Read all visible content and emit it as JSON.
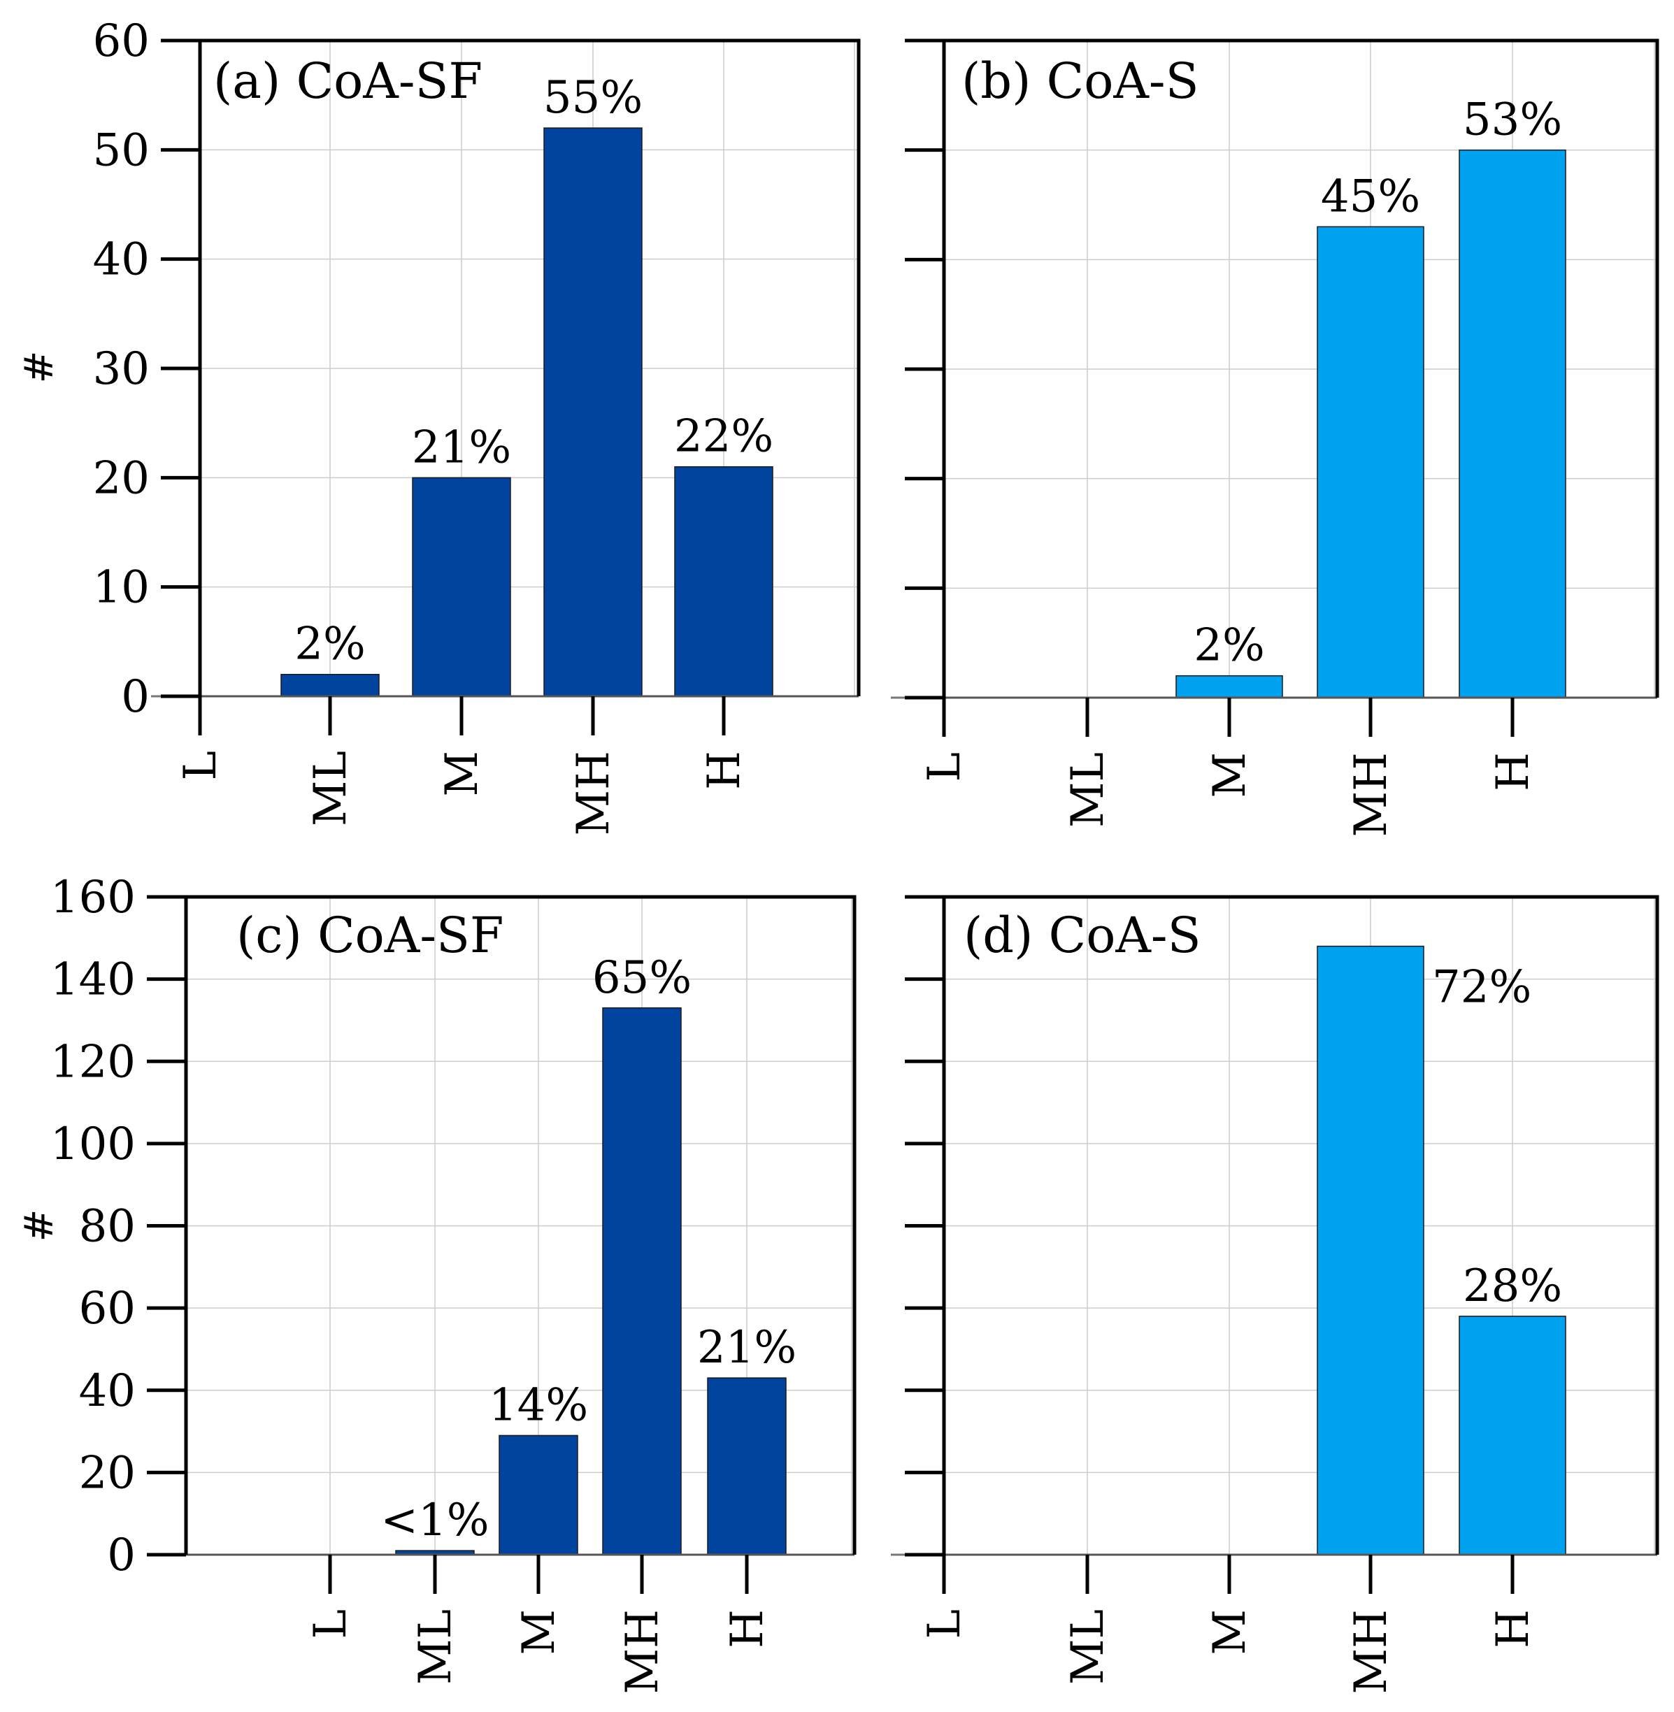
{
  "chart_data": [
    {
      "type": "bar",
      "title": "(a) CoA-SF",
      "ylabel": "#",
      "xlabel": "",
      "ylim": [
        0,
        60
      ],
      "yticks": [
        "0",
        "10",
        "20",
        "30",
        "40",
        "50",
        "60"
      ],
      "categories": [
        "L",
        "ML",
        "M",
        "MH",
        "H"
      ],
      "values": [
        0,
        2,
        20,
        52,
        21
      ],
      "bar_labels": [
        "",
        "2%",
        "21%",
        "55%",
        "22%"
      ],
      "color": "#0044a0",
      "grid": true
    },
    {
      "type": "bar",
      "title": "(b) CoA-S",
      "ylabel": "",
      "xlabel": "",
      "ylim": [
        0,
        60
      ],
      "yticks": [
        "",
        "",
        "",
        "",
        "",
        "",
        ""
      ],
      "categories": [
        "L",
        "ML",
        "M",
        "MH",
        "H"
      ],
      "values": [
        0,
        0,
        2,
        43,
        50
      ],
      "bar_labels": [
        "",
        "",
        "2%",
        "45%",
        "53%"
      ],
      "color": "#00a2f0",
      "grid": true
    },
    {
      "type": "bar",
      "title": "(c) CoA-SF",
      "ylabel": "#",
      "xlabel": "",
      "ylim": [
        0,
        160
      ],
      "yticks": [
        "0",
        "20",
        "40",
        "60",
        "80",
        "100",
        "120",
        "140",
        "160"
      ],
      "categories": [
        "L",
        "ML",
        "M",
        "MH",
        "H"
      ],
      "values": [
        0,
        1,
        29,
        133,
        43
      ],
      "bar_labels": [
        "",
        "<1%",
        "14%",
        "65%",
        "21%"
      ],
      "color": "#0044a0",
      "grid": true
    },
    {
      "type": "bar",
      "title": "(d) CoA-S",
      "ylabel": "",
      "xlabel": "",
      "ylim": [
        0,
        160
      ],
      "yticks": [
        "",
        "",
        "",
        "",
        "",
        "",
        "",
        "",
        ""
      ],
      "categories": [
        "L",
        "ML",
        "M",
        "MH",
        "H"
      ],
      "values": [
        0,
        0,
        0,
        148,
        58
      ],
      "bar_labels": [
        "",
        "",
        "",
        "72%",
        "28%"
      ],
      "color": "#00a2f0",
      "grid": true
    }
  ]
}
